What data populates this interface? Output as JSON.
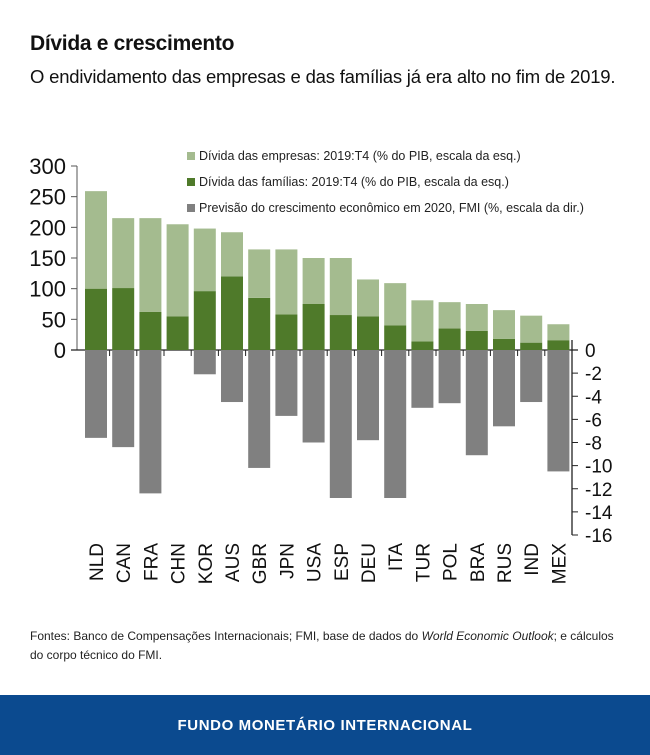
{
  "header": {
    "title": "Dívida e crescimento",
    "subtitle": "O endividamento das empresas e das famílias já era alto no fim de 2019."
  },
  "chart_data": {
    "type": "bar",
    "categories": [
      "NLD",
      "CAN",
      "FRA",
      "CHN",
      "KOR",
      "AUS",
      "GBR",
      "JPN",
      "USA",
      "ESP",
      "DEU",
      "ITA",
      "TUR",
      "POL",
      "BRA",
      "RUS",
      "IND",
      "MEX"
    ],
    "series": [
      {
        "name": "Dívida das empresas: 2019:T4 (% do PIB, escala da esq.)",
        "axis": "left",
        "stacked": true,
        "color": "#a4bb8f",
        "values": [
          159,
          114,
          153,
          150,
          102,
          72,
          79,
          106,
          75,
          93,
          60,
          69,
          67,
          43,
          44,
          47,
          44,
          26
        ]
      },
      {
        "name": "Dívida das famílias: 2019:T4 (% do PIB, escala da esq.)",
        "axis": "left",
        "stacked": true,
        "color": "#4f7a2a",
        "values": [
          100,
          101,
          62,
          55,
          96,
          120,
          85,
          58,
          75,
          57,
          55,
          40,
          14,
          35,
          31,
          18,
          12,
          16
        ]
      },
      {
        "name": "Previsão do crescimento econômico em 2020, FMI (%, escala da dir.)",
        "axis": "right",
        "color": "#808080",
        "values": [
          -7.6,
          -8.4,
          -12.4,
          0,
          -2.1,
          -4.5,
          -10.2,
          -5.7,
          -8.0,
          -12.8,
          -7.8,
          -12.8,
          -5.0,
          -4.6,
          -9.1,
          -6.6,
          -4.5,
          -10.5
        ]
      }
    ],
    "left_axis": {
      "ylim": [
        0,
        300
      ],
      "ticks": [
        "0",
        "50",
        "100",
        "150",
        "200",
        "250",
        "300"
      ]
    },
    "right_axis": {
      "ylim": [
        -16,
        0
      ],
      "ticks": [
        "0",
        "-2",
        "-4",
        "-6",
        "-8",
        "-10",
        "-12",
        "-14",
        "-16"
      ]
    },
    "legend_position": "top-right",
    "title": "",
    "xlabel": "",
    "ylabel": "",
    "grid": false
  },
  "footer": {
    "sources_prefix": "Fontes: Banco de Compensações Internacionais; FMI, base de dados do ",
    "sources_italic": "World Economic Outlook",
    "sources_suffix": "; e cálculos do corpo técnico do FMI.",
    "org_name": "FUNDO MONETÁRIO INTERNACIONAL"
  }
}
